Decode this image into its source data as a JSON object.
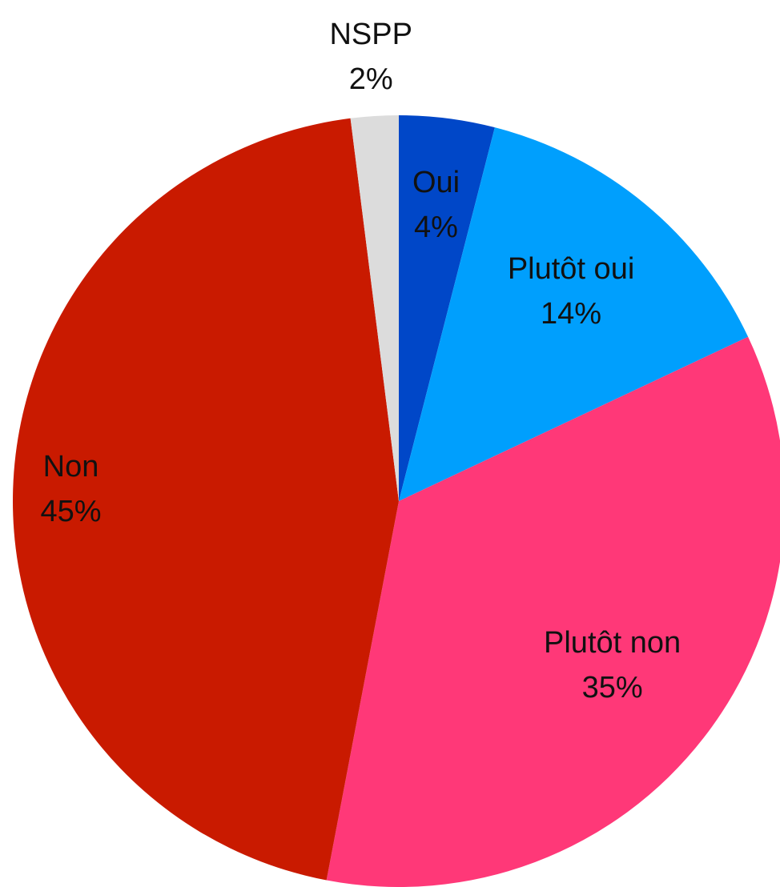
{
  "chart_data": {
    "type": "pie",
    "categories": [
      "Oui",
      "Plutôt oui",
      "Plutôt non",
      "Non",
      "NSPP"
    ],
    "values": [
      4,
      14,
      35,
      45,
      2
    ],
    "value_labels": [
      "4%",
      "14%",
      "35%",
      "45%",
      "2%"
    ],
    "colors": [
      "#0047c8",
      "#009ffd",
      "#ff3878",
      "#c91a00",
      "#dcdcdc"
    ]
  }
}
